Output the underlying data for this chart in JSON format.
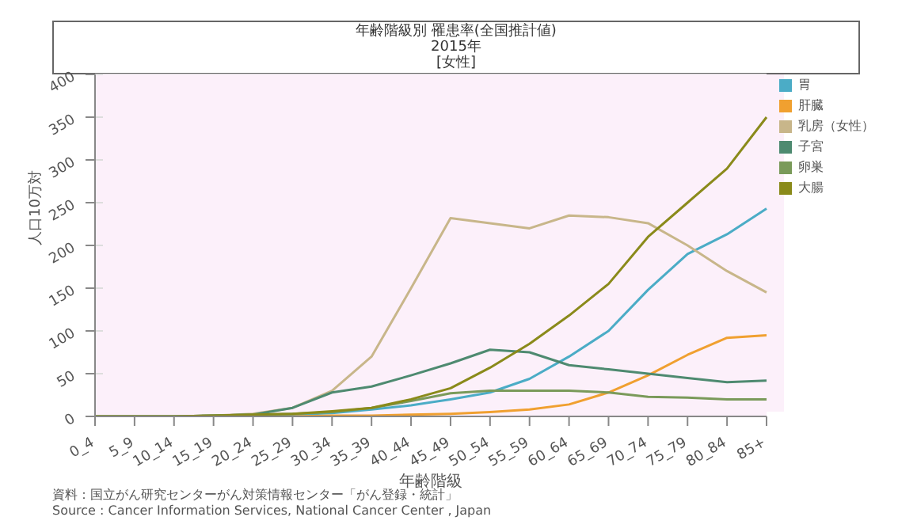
{
  "chart_data": {
    "type": "line",
    "title": "年齢階級別 罹患率(全国推計値)",
    "subtitle": "2015年\n[女性]",
    "xlabel": "年齢階級",
    "ylabel": "人口10万対",
    "categories": [
      "0_4",
      "5_9",
      "10_14",
      "15_19",
      "20_24",
      "25_29",
      "30_34",
      "35_39",
      "40_44",
      "45_49",
      "50_54",
      "55_59",
      "60_64",
      "65_69",
      "70_74",
      "75_79",
      "80_84",
      "85+"
    ],
    "series": [
      {
        "name": "胃",
        "color": "#4bacc6",
        "values": [
          null,
          null,
          null,
          null,
          1,
          2,
          4,
          8,
          13,
          20,
          28,
          44,
          70,
          100,
          148,
          190,
          213,
          243
        ]
      },
      {
        "name": "肝臓",
        "color": "#f0a030",
        "values": [
          null,
          null,
          null,
          null,
          0,
          0,
          1,
          1,
          2,
          3,
          5,
          8,
          14,
          28,
          48,
          72,
          92,
          95
        ]
      },
      {
        "name": "乳房（女性）",
        "color": "#c8b68a",
        "values": [
          0,
          0,
          0,
          1,
          3,
          10,
          30,
          70,
          150,
          232,
          226,
          220,
          235,
          233,
          226,
          200,
          170,
          145
        ]
      },
      {
        "name": "子宮",
        "color": "#4e8a70",
        "values": [
          0,
          0,
          0,
          1,
          2,
          10,
          28,
          35,
          48,
          62,
          78,
          75,
          60,
          55,
          50,
          45,
          40,
          42
        ]
      },
      {
        "name": "卵巣",
        "color": "#7a9a5a",
        "values": [
          0,
          0,
          0,
          1,
          2,
          3,
          5,
          10,
          18,
          27,
          30,
          30,
          30,
          28,
          23,
          22,
          20,
          20
        ]
      },
      {
        "name": "大腸",
        "color": "#8a8a1a",
        "values": [
          0,
          0,
          0,
          1,
          2,
          3,
          6,
          10,
          20,
          33,
          57,
          85,
          118,
          155,
          210,
          250,
          290,
          350
        ]
      }
    ],
    "ylim": [
      0,
      400
    ],
    "yticks": [
      0,
      50,
      100,
      150,
      200,
      250,
      300,
      350,
      400
    ],
    "grid": "y",
    "legend": "top right",
    "marker": "none",
    "annotations": [
      "資料：国立がん研究センターがん対策情報センター「がん登録・統計」",
      "Source : Cancer Information Services, National Cancer Center , Japan"
    ]
  }
}
